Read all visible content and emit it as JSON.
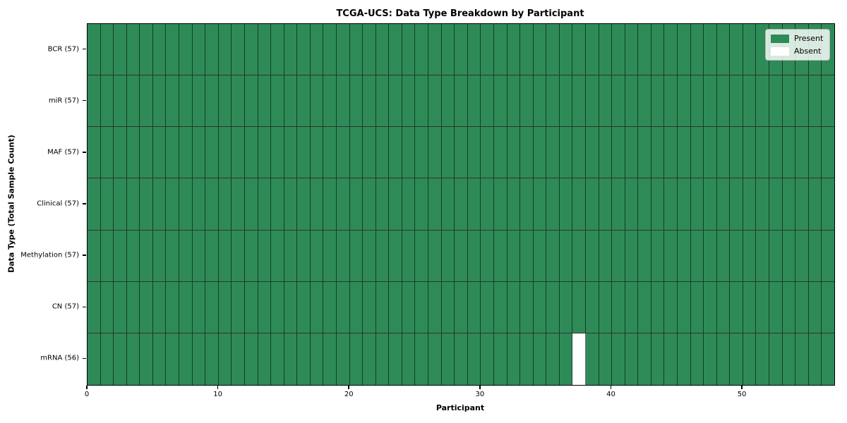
{
  "chart_data": {
    "type": "heatmap",
    "title": "TCGA-UCS: Data Type Breakdown by Participant",
    "xlabel": "Participant",
    "ylabel": "Data Type (Total Sample Count)",
    "n_participants": 57,
    "x_range": [
      0,
      57
    ],
    "x_ticks": [
      0,
      10,
      20,
      30,
      40,
      50
    ],
    "present_color": "#2e8b57",
    "absent_color": "#ffffff",
    "grid": true,
    "legend_position": "upper-right",
    "legend": [
      {
        "label": "Present",
        "color": "#2e8b57"
      },
      {
        "label": "Absent",
        "color": "#ffffff"
      }
    ],
    "rows": [
      {
        "label": "BCR",
        "count": 57,
        "display": "BCR (57)",
        "absent_participants": []
      },
      {
        "label": "miR",
        "count": 57,
        "display": "miR (57)",
        "absent_participants": []
      },
      {
        "label": "MAF",
        "count": 57,
        "display": "MAF (57)",
        "absent_participants": []
      },
      {
        "label": "Clinical",
        "count": 57,
        "display": "Clinical (57)",
        "absent_participants": []
      },
      {
        "label": "Methylation",
        "count": 57,
        "display": "Methylation (57)",
        "absent_participants": []
      },
      {
        "label": "CN",
        "count": 57,
        "display": "CN (57)",
        "absent_participants": []
      },
      {
        "label": "mRNA",
        "count": 56,
        "display": "mRNA (56)",
        "absent_participants": [
          37
        ]
      }
    ]
  }
}
